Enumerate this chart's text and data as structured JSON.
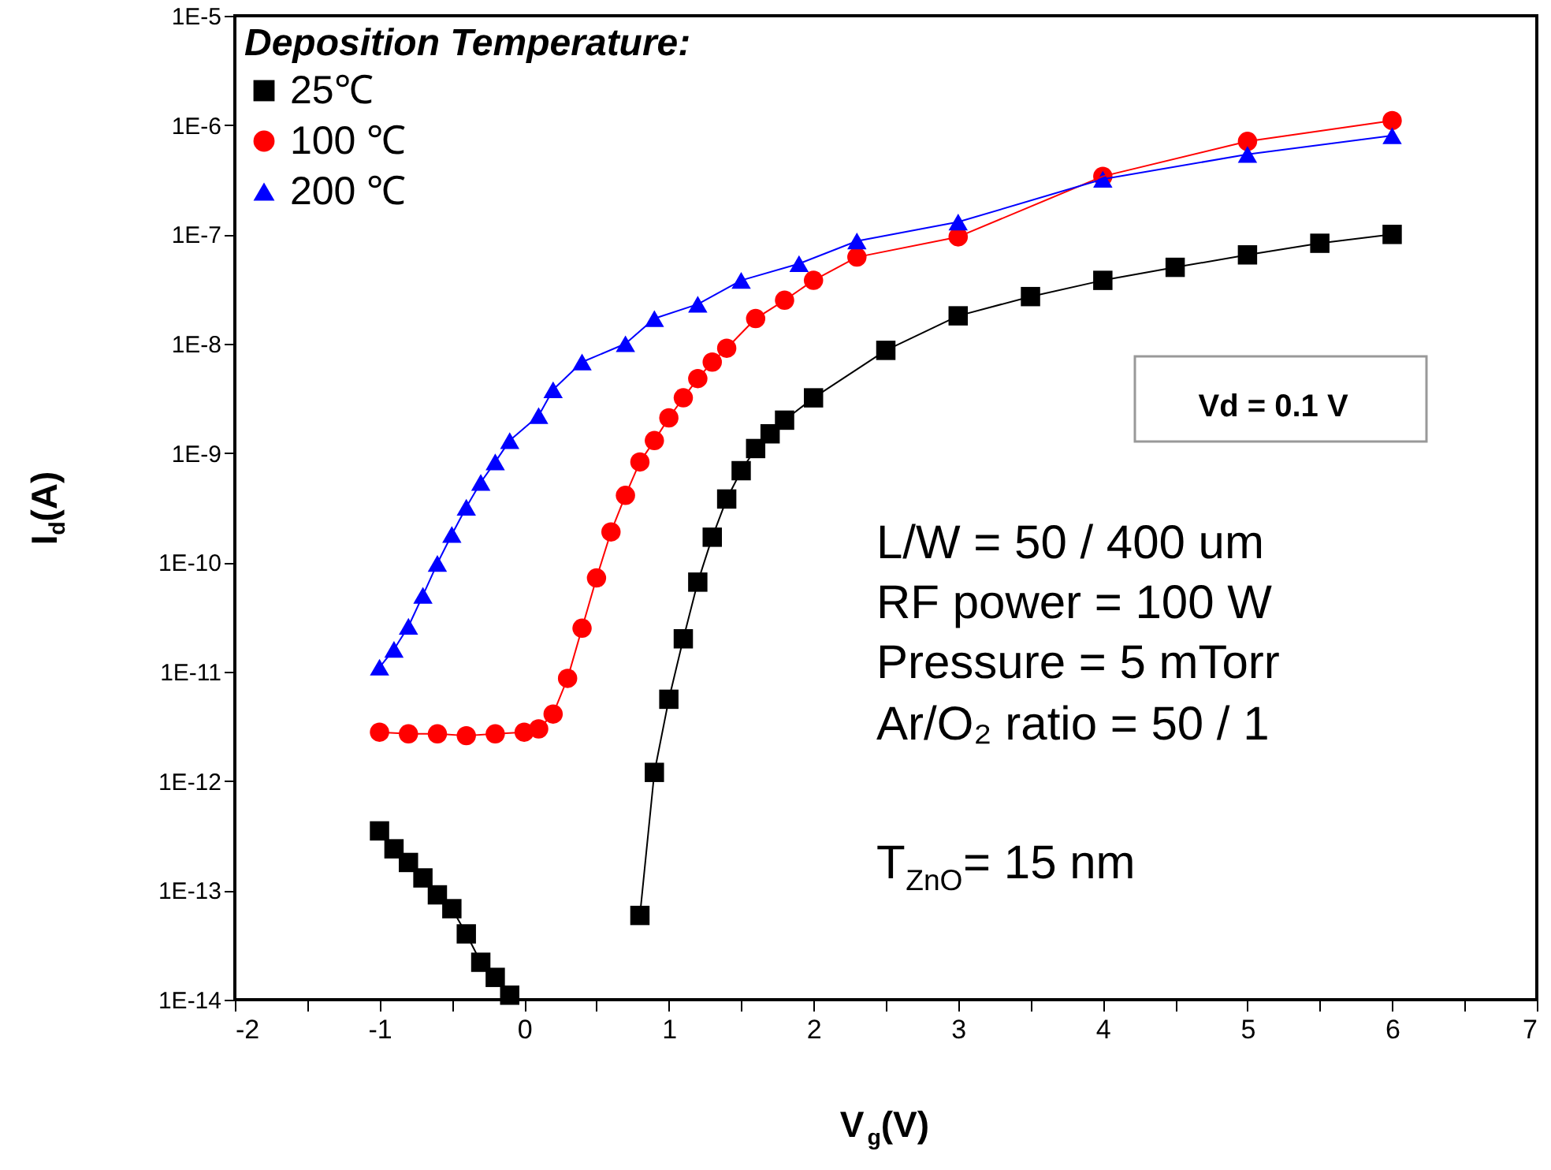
{
  "chart_data": {
    "type": "line",
    "xlabel": "V$_{g}$(V)",
    "ylabel": "I$_{d}$(A)",
    "legend_title": "Deposition Temperature:",
    "legend": "top left",
    "log": "y",
    "grid": false,
    "xlim": [
      -2,
      7
    ],
    "xticks": [
      -2,
      {
        "value": -1.5,
        "label": null
      },
      -1,
      {
        "value": -0.5,
        "label": null
      },
      0,
      {
        "value": 0.5,
        "label": null
      },
      1,
      {
        "value": 1.5,
        "label": null
      },
      2,
      {
        "value": 2.5,
        "label": null
      },
      3,
      {
        "value": 3.5,
        "label": null
      },
      4,
      {
        "value": 4.5,
        "label": null
      },
      5,
      {
        "value": 5.5,
        "label": null
      },
      6,
      {
        "value": 6.5,
        "label": null
      },
      7
    ],
    "ylim": [
      1e-14,
      1e-05
    ],
    "yticks": [
      {
        "value": 1e-14,
        "label": "1E-14"
      },
      {
        "value": 1e-13,
        "label": "1E-13"
      },
      {
        "value": 1e-12,
        "label": "1E-12"
      },
      {
        "value": 1e-11,
        "label": "1E-11"
      },
      {
        "value": 1e-10,
        "label": "1E-10"
      },
      {
        "value": 1e-09,
        "label": "1E-9"
      },
      {
        "value": 1e-08,
        "label": "1E-8"
      },
      {
        "value": 1e-07,
        "label": "1E-7"
      },
      {
        "value": 1e-06,
        "label": "1E-6"
      },
      {
        "value": 1e-05,
        "label": "1E-5"
      }
    ],
    "annotations": [
      "Vd = 0.1 V",
      "L/W = 50 / 400 um",
      "RF power = 100 W",
      "Pressure = 5 mTorr",
      "Ar/O₂ ratio = 50 / 1",
      "T$_{ZnO}$= 15 nm"
    ],
    "series": [
      {
        "name": "25℃",
        "color": "#000000",
        "marker": "square",
        "x": [
          -1.0,
          -0.9,
          -0.8,
          -0.7,
          -0.6,
          -0.5,
          -0.4,
          -0.3,
          -0.2,
          -0.1,
          0.3,
          0.8,
          0.9,
          1.0,
          1.1,
          1.2,
          1.3,
          1.4,
          1.5,
          1.6,
          1.7,
          1.8,
          2.0,
          2.5,
          3.0,
          3.5,
          4.0,
          4.5,
          5.0,
          5.5,
          6.0
        ],
        "values": [
          3.5e-13,
          2.4e-13,
          1.8e-13,
          1.3e-13,
          9.1e-14,
          6.8e-14,
          4e-14,
          2.2e-14,
          1.6e-14,
          1.1e-14,
          null,
          5.9e-14,
          1.2e-12,
          5.6e-12,
          2e-11,
          6.6e-11,
          1.7e-10,
          3.8e-10,
          6.9e-10,
          1.1e-09,
          1.5e-09,
          2e-09,
          3.2e-09,
          8.7e-09,
          1.8e-08,
          2.7e-08,
          3.8e-08,
          5e-08,
          6.5e-08,
          8.3e-08,
          1e-07
        ]
      },
      {
        "name": "100 ℃",
        "color": "#ff0000",
        "marker": "circle",
        "x": [
          -1.0,
          -0.8,
          -0.6,
          -0.4,
          -0.2,
          0.0,
          0.1,
          0.2,
          0.3,
          0.4,
          0.5,
          0.6,
          0.7,
          0.8,
          0.9,
          1.0,
          1.1,
          1.2,
          1.3,
          1.4,
          1.6,
          1.8,
          2.0,
          2.3,
          3.0,
          4.0,
          5.0,
          6.0
        ],
        "values": [
          2.8e-12,
          2.7e-12,
          2.7e-12,
          2.6e-12,
          2.7e-12,
          2.8e-12,
          3e-12,
          4.1e-12,
          8.7e-12,
          2.5e-11,
          7.2e-11,
          1.9e-10,
          4.1e-10,
          8.3e-10,
          1.3e-09,
          2.1e-09,
          3.2e-09,
          4.8e-09,
          6.8e-09,
          9.1e-09,
          1.7e-08,
          2.5e-08,
          3.8e-08,
          6.2e-08,
          9.5e-08,
          3.4e-07,
          7.1e-07,
          1.1e-06
        ]
      },
      {
        "name": "200 ℃",
        "color": "#0000ff",
        "marker": "triangle",
        "x": [
          -1.0,
          -0.9,
          -0.8,
          -0.7,
          -0.6,
          -0.5,
          -0.4,
          -0.3,
          -0.2,
          -0.1,
          0.1,
          0.2,
          0.4,
          0.7,
          0.9,
          1.2,
          1.5,
          1.9,
          2.3,
          3.0,
          4.0,
          5.0,
          6.0
        ],
        "values": [
          1.1e-11,
          1.6e-11,
          2.6e-11,
          5e-11,
          9.8e-11,
          1.8e-10,
          3.2e-10,
          5.4e-10,
          8.3e-10,
          1.3e-09,
          2.2e-09,
          3.8e-09,
          6.8e-09,
          1e-08,
          1.7e-08,
          2.3e-08,
          3.8e-08,
          5.4e-08,
          8.7e-08,
          1.3e-07,
          3.2e-07,
          5.4e-07,
          8e-07
        ]
      }
    ]
  }
}
